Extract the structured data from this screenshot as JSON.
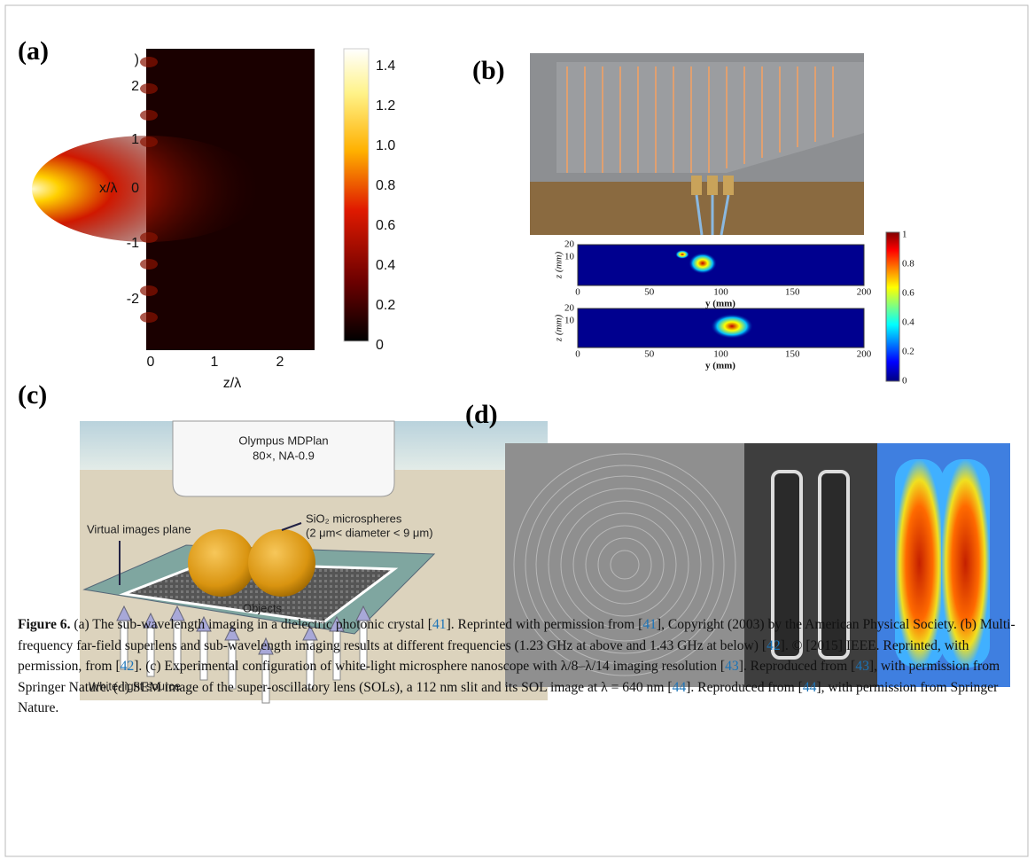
{
  "panels": {
    "a": {
      "label": "(a)",
      "yticks": [
        ")",
        "2",
        "1",
        "0",
        "-1",
        "-2"
      ],
      "ylabel": "x/λ",
      "xticks": [
        "0",
        "1",
        "2"
      ],
      "xlabel": "z/λ",
      "cbar": [
        "1.4",
        "1.2",
        "1.0",
        "0.8",
        "0.6",
        "0.4",
        "0.2",
        "0"
      ]
    },
    "b": {
      "label": "(b)",
      "plots": [
        {
          "ylabel": "z (mm)",
          "yticks": [
            "20",
            "10"
          ],
          "xticks": [
            "0",
            "50",
            "100",
            "150",
            "200"
          ],
          "xlabel": "y (mm)"
        },
        {
          "ylabel": "z (mm)",
          "yticks": [
            "20",
            "10"
          ],
          "xticks": [
            "0",
            "50",
            "100",
            "150",
            "200"
          ],
          "xlabel": "y (mm)"
        }
      ],
      "cbar": [
        "1",
        "0.8",
        "0.6",
        "0.4",
        "0.2",
        "0"
      ]
    },
    "c": {
      "label": "(c)",
      "objective": [
        "Olympus MDPlan",
        "80×, NA-0.9"
      ],
      "plane": "Virtual images plane",
      "spheres": [
        "SiO₂ microspheres",
        "(2 μm< diameter < 9 μm)"
      ],
      "objects": "Objects",
      "source": "White-light source"
    },
    "d": {
      "label": "(d)"
    }
  },
  "caption": {
    "label": "Figure 6.",
    "segments": [
      {
        "text": " (a) The sub-wavelength imaging in a dielectric photonic crystal ["
      },
      {
        "ref": "41"
      },
      {
        "text": "]. Reprinted with permission from ["
      },
      {
        "ref": "41"
      },
      {
        "text": "], Copyright (2003) by the American Physical Society. (b) Multi-frequency far-field superlens and sub-wavelength imaging results at different frequencies (1.23 GHz at above and 1.43 GHz at below) ["
      },
      {
        "ref": "42"
      },
      {
        "text": "]. © [2015] IEEE. Reprinted, with permission, from ["
      },
      {
        "ref": "42"
      },
      {
        "text": "]. (c) Experimental configuration of white-light microsphere nanoscope with λ/8–λ/14 imaging resolution ["
      },
      {
        "ref": "43"
      },
      {
        "text": "]. Reproduced from ["
      },
      {
        "ref": "43"
      },
      {
        "text": "], with permission from Springer Nature. (d) SEM image of the super-oscillatory lens (SOLs), a 112 nm slit and its SOL image at λ = 640 nm ["
      },
      {
        "ref": "44"
      },
      {
        "text": "]. Reproduced from ["
      },
      {
        "ref": "44"
      },
      {
        "text": "], with permission from Springer Nature."
      }
    ]
  }
}
